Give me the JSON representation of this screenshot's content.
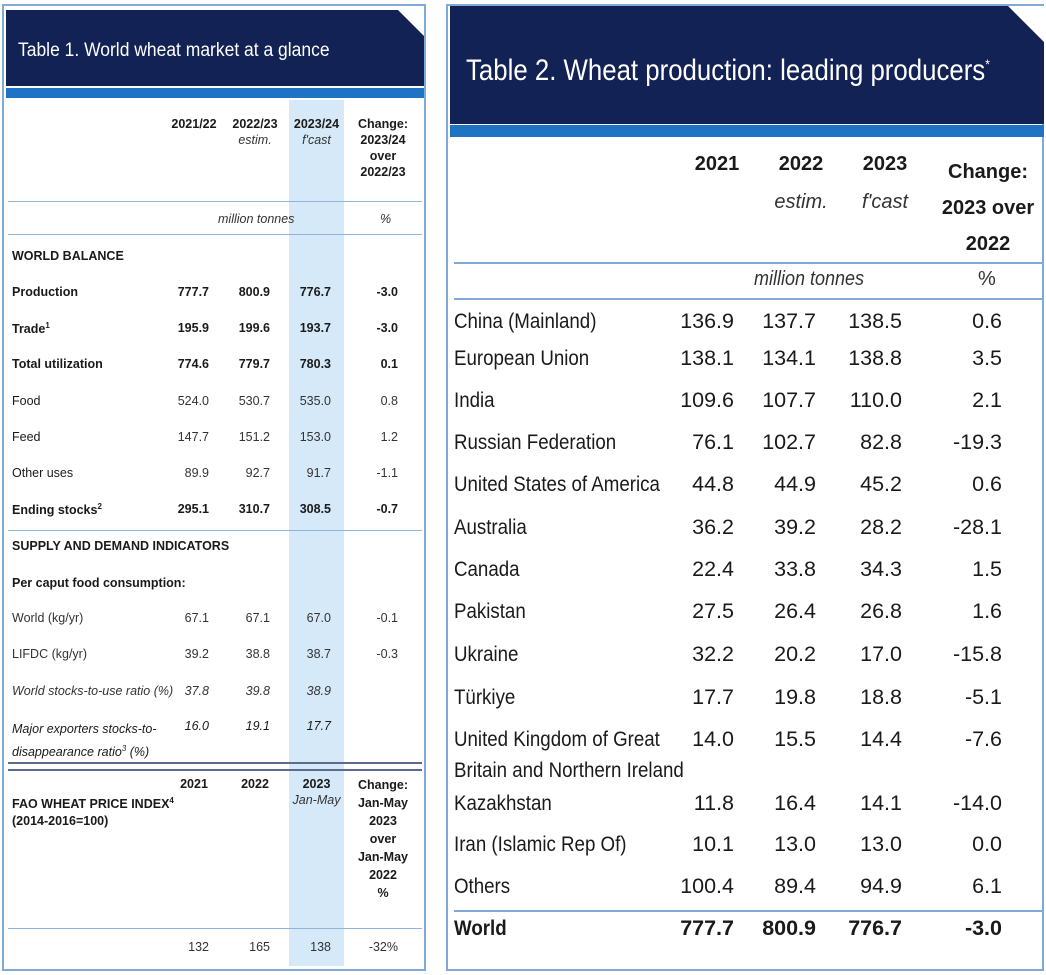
{
  "table1": {
    "title": "Table 1. World wheat market at a glance",
    "col_heads": [
      {
        "line1": "2021/22",
        "line2": ""
      },
      {
        "line1": "2022/23",
        "line2": "estim."
      },
      {
        "line1": "2023/24",
        "line2": "f'cast"
      },
      {
        "line1": "Change:",
        "line2": "2023/24",
        "line3": "over",
        "line4": "2022/23"
      }
    ],
    "unit_label": "million tonnes",
    "pct_label": "%",
    "section_world": "WORLD BALANCE",
    "rows": [
      {
        "label": "Production",
        "sup": "",
        "v": [
          "777.7",
          "800.9",
          "776.7",
          "-3.0"
        ]
      },
      {
        "label": "Trade",
        "sup": "1",
        "v": [
          "195.9",
          "199.6",
          "193.7",
          "-3.0"
        ]
      },
      {
        "label": "Total utilization",
        "sup": "",
        "v": [
          "774.6",
          "779.7",
          "780.3",
          "0.1"
        ]
      },
      {
        "label": "Food",
        "sup": "",
        "v": [
          "524.0",
          "530.7",
          "535.0",
          "0.8"
        ]
      },
      {
        "label": "Feed",
        "sup": "",
        "v": [
          "147.7",
          "151.2",
          "153.0",
          "1.2"
        ]
      },
      {
        "label": "Other uses",
        "sup": "",
        "v": [
          "89.9",
          "92.7",
          "91.7",
          "-1.1"
        ]
      },
      {
        "label": "Ending stocks",
        "sup": "2",
        "v": [
          "295.1",
          "310.7",
          "308.5",
          "-0.7"
        ]
      }
    ],
    "section_supply": "SUPPLY AND DEMAND INDICATORS",
    "per_caput": "Per caput food consumption:",
    "rows2": [
      {
        "label": "World (kg/yr)",
        "v": [
          "67.1",
          "67.1",
          "67.0",
          "-0.1"
        ]
      },
      {
        "label": "LIFDC (kg/yr)",
        "v": [
          "39.2",
          "38.8",
          "38.7",
          "-0.3"
        ]
      },
      {
        "label": "World stocks-to-use ratio (%)",
        "v": [
          "37.8",
          "39.8",
          "38.9",
          ""
        ]
      }
    ],
    "major_label1": "Major exporters stocks-to-",
    "major_label2": "disappearance ratio",
    "major_sup": "3",
    "major_label3": " (%)",
    "major_vals": [
      "16.0",
      "19.1",
      "17.7"
    ],
    "fao_label1": "FAO WHEAT PRICE INDEX",
    "fao_sup": "4",
    "fao_label2": "(2014-2016=100)",
    "fao_heads": {
      "c1": "2021",
      "c2": "2022",
      "c3": "2023",
      "c3sub": "Jan-May",
      "c4": [
        "Change:",
        "Jan-May",
        "2023",
        "over",
        "Jan-May",
        "2022",
        "%"
      ]
    },
    "fao_vals": [
      "132",
      "165",
      "138",
      "-32%"
    ]
  },
  "table2": {
    "title": "Table 2. Wheat production: leading producers",
    "title_sup": "*",
    "col_heads": {
      "c1": "2021",
      "c2": "2022",
      "c2sub": "estim.",
      "c3": "2023",
      "c3sub": "f'cast",
      "c4": [
        "Change:",
        "2023 over",
        "2022"
      ]
    },
    "unit_label": "million tonnes",
    "pct_label": "%",
    "rows": [
      {
        "name": "China (Mainland)",
        "v": [
          "136.9",
          "137.7",
          "138.5",
          "0.6"
        ]
      },
      {
        "name": "European Union",
        "v": [
          "138.1",
          "134.1",
          "138.8",
          "3.5"
        ]
      },
      {
        "name": "India",
        "v": [
          "109.6",
          "107.7",
          "110.0",
          "2.1"
        ]
      },
      {
        "name": "Russian Federation",
        "v": [
          "76.1",
          "102.7",
          "82.8",
          "-19.3"
        ]
      },
      {
        "name": "United States of America",
        "v": [
          "44.8",
          "44.9",
          "45.2",
          "0.6"
        ]
      },
      {
        "name": "Australia",
        "v": [
          "36.2",
          "39.2",
          "28.2",
          "-28.1"
        ]
      },
      {
        "name": "Canada",
        "v": [
          "22.4",
          "33.8",
          "34.3",
          "1.5"
        ]
      },
      {
        "name": "Pakistan",
        "v": [
          "27.5",
          "26.4",
          "26.8",
          "1.6"
        ]
      },
      {
        "name": "Ukraine",
        "v": [
          "32.2",
          "20.2",
          "17.0",
          "-15.8"
        ]
      },
      {
        "name": "Türkiye",
        "v": [
          "17.7",
          "19.8",
          "18.8",
          "-5.1"
        ]
      },
      {
        "name": "United Kingdom of Great",
        "name2": "Britain and Northern Ireland",
        "v": [
          "14.0",
          "15.5",
          "14.4",
          "-7.6"
        ]
      },
      {
        "name": "Kazakhstan",
        "v": [
          "11.8",
          "16.4",
          "14.1",
          "-14.0"
        ]
      },
      {
        "name": "Iran (Islamic Rep Of)",
        "v": [
          "10.1",
          "13.0",
          "13.0",
          "0.0"
        ]
      },
      {
        "name": "Others",
        "v": [
          "100.4",
          "89.4",
          "94.9",
          "6.1"
        ]
      }
    ],
    "world": {
      "name": "World",
      "v": [
        "777.7",
        "800.9",
        "776.7",
        "-3.0"
      ]
    }
  }
}
